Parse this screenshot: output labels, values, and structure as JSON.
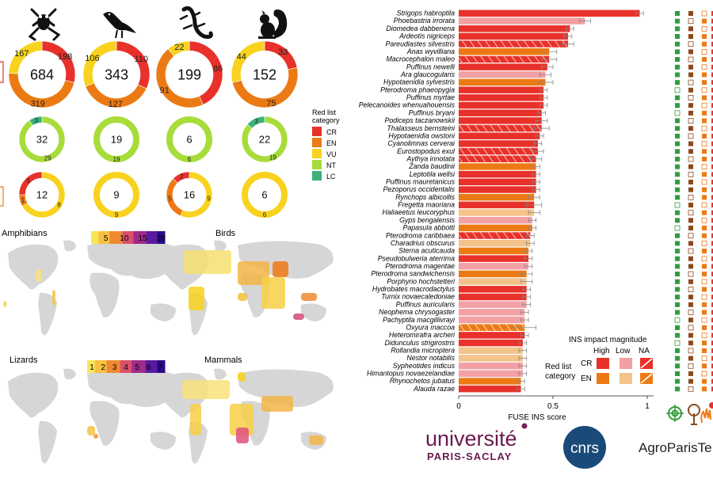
{
  "colors": {
    "CR": "#e8312a",
    "EN": "#ec7a14",
    "VU": "#f8d21e",
    "NT": "#a8dc3a",
    "LC": "#3cb07a",
    "CR_low": "#f2a0a4",
    "EN_low": "#f4c38c",
    "land": "#d6d6d6"
  },
  "groups": [
    {
      "name": "Amphibians",
      "icon": "frog-icon"
    },
    {
      "name": "Birds",
      "icon": "bird-icon"
    },
    {
      "name": "Lizards",
      "icon": "lizard-icon"
    },
    {
      "name": "Mammals",
      "icon": "squirrel-icon"
    }
  ],
  "donuts_total": [
    {
      "total": "684",
      "segments": [
        {
          "cat": "CR",
          "value": 198
        },
        {
          "cat": "EN",
          "value": 319
        },
        {
          "cat": "VU",
          "value": 167
        }
      ],
      "labels": {
        "CR": "198",
        "EN": "319",
        "VU": "167"
      }
    },
    {
      "total": "343",
      "segments": [
        {
          "cat": "CR",
          "value": 110
        },
        {
          "cat": "EN",
          "value": 127
        },
        {
          "cat": "VU",
          "value": 106
        }
      ],
      "labels": {
        "CR": "110",
        "EN": "127",
        "VU": "106"
      }
    },
    {
      "total": "199",
      "segments": [
        {
          "cat": "CR",
          "value": 86
        },
        {
          "cat": "EN",
          "value": 91
        },
        {
          "cat": "VU",
          "value": 22
        }
      ],
      "labels": {
        "CR": "86",
        "EN": "91",
        "VU": "22"
      }
    },
    {
      "total": "152",
      "segments": [
        {
          "cat": "CR",
          "value": 33
        },
        {
          "cat": "EN",
          "value": 75
        },
        {
          "cat": "VU",
          "value": 44
        }
      ],
      "labels": {
        "CR": "33",
        "EN": "75",
        "VU": "44"
      }
    }
  ],
  "donuts_mid": [
    {
      "total": "32",
      "segments": [
        {
          "cat": "NT",
          "value": 29
        },
        {
          "cat": "LC",
          "value": 3
        }
      ],
      "labels": {
        "NT": "29",
        "LC": "3"
      }
    },
    {
      "total": "19",
      "segments": [
        {
          "cat": "NT",
          "value": 19
        }
      ],
      "labels": {
        "NT": "19"
      }
    },
    {
      "total": "6",
      "segments": [
        {
          "cat": "NT",
          "value": 6
        }
      ],
      "labels": {
        "NT": "6"
      }
    },
    {
      "total": "22",
      "segments": [
        {
          "cat": "NT",
          "value": 19
        },
        {
          "cat": "LC",
          "value": 3
        }
      ],
      "labels": {
        "NT": "19",
        "LC": "3"
      }
    }
  ],
  "donuts_low": [
    {
      "total": "12",
      "segments": [
        {
          "cat": "VU",
          "value": 8
        },
        {
          "cat": "EN",
          "value": 1
        },
        {
          "cat": "CR",
          "value": 3
        }
      ],
      "labels": {
        "VU": "8",
        "EN": "1",
        "CR": "3"
      }
    },
    {
      "total": "9",
      "segments": [
        {
          "cat": "VU",
          "value": 9
        }
      ],
      "labels": {
        "VU": "9"
      }
    },
    {
      "total": "16",
      "segments": [
        {
          "cat": "VU",
          "value": 9
        },
        {
          "cat": "EN",
          "value": 5
        },
        {
          "cat": "CR",
          "value": 2
        }
      ],
      "labels": {
        "VU": "9",
        "EN": "5",
        "CR": "2"
      }
    },
    {
      "total": "6",
      "segments": [
        {
          "cat": "VU",
          "value": 6
        }
      ],
      "labels": {
        "VU": "6"
      }
    }
  ],
  "red_list_legend": {
    "title_line1": "Red list",
    "title_line2": "category",
    "items": [
      "CR",
      "EN",
      "VU",
      "NT",
      "LC"
    ]
  },
  "maps": {
    "scale_top": {
      "ticks": [
        "5",
        "10",
        "15",
        "20"
      ]
    },
    "scale_bottom": {
      "ticks": [
        "1",
        "2",
        "3",
        "4",
        "5",
        "6",
        "7"
      ]
    },
    "titles": [
      "Amphibians",
      "Birds",
      "Lizards",
      "Mammals"
    ]
  },
  "chart_data": {
    "type": "bar",
    "xlabel": "FUSE INS score",
    "xlim": [
      0,
      1.05
    ],
    "xticks": [
      "0",
      "0.5",
      "1"
    ],
    "bars": [
      {
        "species": "Strigops habroptila",
        "value": 0.96,
        "err": 0.02,
        "cat": "CR",
        "impact": "High"
      },
      {
        "species": "Phoebastria irrorata",
        "value": 0.67,
        "err": 0.03,
        "cat": "CR",
        "impact": "Low"
      },
      {
        "species": "Diomedea dabbenena",
        "value": 0.59,
        "err": 0.02,
        "cat": "CR",
        "impact": "High"
      },
      {
        "species": "Ardeotis nigriceps",
        "value": 0.58,
        "err": 0.02,
        "cat": "CR",
        "impact": "High"
      },
      {
        "species": "Pareudiastes silvestris",
        "value": 0.58,
        "err": 0.03,
        "cat": "CR",
        "impact": "NA"
      },
      {
        "species": "Anas wyvilliana",
        "value": 0.48,
        "err": 0.04,
        "cat": "EN",
        "impact": "High"
      },
      {
        "species": "Macrocephalon maleo",
        "value": 0.48,
        "err": 0.04,
        "cat": "CR",
        "impact": "NA"
      },
      {
        "species": "Puffinus newelli",
        "value": 0.47,
        "err": 0.03,
        "cat": "CR",
        "impact": "High"
      },
      {
        "species": "Ara glaucogularis",
        "value": 0.46,
        "err": 0.03,
        "cat": "CR",
        "impact": "Low"
      },
      {
        "species": "Hypotaenidia sylvestris",
        "value": 0.46,
        "err": 0.04,
        "cat": "EN",
        "impact": "High"
      },
      {
        "species": "Pterodroma phaeopygia",
        "value": 0.45,
        "err": 0.02,
        "cat": "CR",
        "impact": "High"
      },
      {
        "species": "Puffinus myrtae",
        "value": 0.45,
        "err": 0.02,
        "cat": "CR",
        "impact": "High"
      },
      {
        "species": "Pelecanoides whenuahouensis",
        "value": 0.45,
        "err": 0.02,
        "cat": "CR",
        "impact": "High"
      },
      {
        "species": "Puffinus bryani",
        "value": 0.44,
        "err": 0.02,
        "cat": "CR",
        "impact": "High"
      },
      {
        "species": "Podiceps taczanowskii",
        "value": 0.44,
        "err": 0.03,
        "cat": "CR",
        "impact": "High"
      },
      {
        "species": "Thalasseus bernsteini",
        "value": 0.44,
        "err": 0.04,
        "cat": "CR",
        "impact": "NA"
      },
      {
        "species": "Hypotaenidia owstoni",
        "value": 0.43,
        "err": 0.02,
        "cat": "CR",
        "impact": "High"
      },
      {
        "species": "Cyanolimnas cerverai",
        "value": 0.42,
        "err": 0.02,
        "cat": "CR",
        "impact": "High"
      },
      {
        "species": "Eurostopodus exul",
        "value": 0.42,
        "err": 0.03,
        "cat": "CR",
        "impact": "NA"
      },
      {
        "species": "Aythya innotata",
        "value": 0.41,
        "err": 0.03,
        "cat": "CR",
        "impact": "NA"
      },
      {
        "species": "Zanda baudinii",
        "value": 0.41,
        "err": 0.02,
        "cat": "EN",
        "impact": "High"
      },
      {
        "species": "Leptotila wellsi",
        "value": 0.41,
        "err": 0.02,
        "cat": "CR",
        "impact": "High"
      },
      {
        "species": "Puffinus mauretanicus",
        "value": 0.41,
        "err": 0.02,
        "cat": "CR",
        "impact": "High"
      },
      {
        "species": "Pezoporus occidentalis",
        "value": 0.41,
        "err": 0.02,
        "cat": "CR",
        "impact": "High"
      },
      {
        "species": "Rynchops albicollis",
        "value": 0.4,
        "err": 0.03,
        "cat": "EN",
        "impact": "High"
      },
      {
        "species": "Fregetta maoriana",
        "value": 0.4,
        "err": 0.04,
        "cat": "CR",
        "impact": "High"
      },
      {
        "species": "Haliaeetus leucoryphus",
        "value": 0.4,
        "err": 0.03,
        "cat": "EN",
        "impact": "Low"
      },
      {
        "species": "Gyps bengalensis",
        "value": 0.39,
        "err": 0.02,
        "cat": "CR",
        "impact": "Low"
      },
      {
        "species": "Papasula abbotti",
        "value": 0.39,
        "err": 0.02,
        "cat": "EN",
        "impact": "High"
      },
      {
        "species": "Pterodroma caribbaea",
        "value": 0.38,
        "err": 0.02,
        "cat": "CR",
        "impact": "NA"
      },
      {
        "species": "Charadrius obscurus",
        "value": 0.38,
        "err": 0.02,
        "cat": "EN",
        "impact": "Low"
      },
      {
        "species": "Sterna acuticauda",
        "value": 0.37,
        "err": 0.02,
        "cat": "EN",
        "impact": "High"
      },
      {
        "species": "Pseudobulweria aterrima",
        "value": 0.37,
        "err": 0.02,
        "cat": "CR",
        "impact": "High"
      },
      {
        "species": "Pterodroma magentae",
        "value": 0.37,
        "err": 0.02,
        "cat": "CR",
        "impact": "Low"
      },
      {
        "species": "Pterodroma sandwichensis",
        "value": 0.36,
        "err": 0.03,
        "cat": "EN",
        "impact": "High"
      },
      {
        "species": "Porphyrio hochstetteri",
        "value": 0.36,
        "err": 0.03,
        "cat": "EN",
        "impact": "Low"
      },
      {
        "species": "Hydrobates macrodactylus",
        "value": 0.36,
        "err": 0.02,
        "cat": "CR",
        "impact": "High"
      },
      {
        "species": "Turnix novaecaledoniae",
        "value": 0.36,
        "err": 0.02,
        "cat": "CR",
        "impact": "High"
      },
      {
        "species": "Puffinus auricularis",
        "value": 0.36,
        "err": 0.02,
        "cat": "CR",
        "impact": "Low"
      },
      {
        "species": "Neophema chrysogaster",
        "value": 0.35,
        "err": 0.02,
        "cat": "CR",
        "impact": "Low"
      },
      {
        "species": "Pachyptila macgillivrayi",
        "value": 0.35,
        "err": 0.02,
        "cat": "CR",
        "impact": "Low"
      },
      {
        "species": "Oxyura maccoa",
        "value": 0.35,
        "err": 0.06,
        "cat": "EN",
        "impact": "NA"
      },
      {
        "species": "Heteromirafra archeri",
        "value": 0.35,
        "err": 0.02,
        "cat": "CR",
        "impact": "High"
      },
      {
        "species": "Didunculus strigirostris",
        "value": 0.34,
        "err": 0.02,
        "cat": "CR",
        "impact": "High"
      },
      {
        "species": "Rollandia microptera",
        "value": 0.34,
        "err": 0.02,
        "cat": "EN",
        "impact": "Low"
      },
      {
        "species": "Nestor notabilis",
        "value": 0.34,
        "err": 0.02,
        "cat": "EN",
        "impact": "Low"
      },
      {
        "species": "Sypheotides indicus",
        "value": 0.34,
        "err": 0.02,
        "cat": "CR",
        "impact": "Low"
      },
      {
        "species": "Himantopus novaezelandiae",
        "value": 0.34,
        "err": 0.02,
        "cat": "CR",
        "impact": "Low"
      },
      {
        "species": "Rhynochetos jubatus",
        "value": 0.33,
        "err": 0.02,
        "cat": "EN",
        "impact": "High"
      },
      {
        "species": "Alauda razae",
        "value": 0.33,
        "err": 0.02,
        "cat": "CR",
        "impact": "High"
      }
    ]
  },
  "impact_legend": {
    "title": "INS impact magnitude",
    "cols": [
      "High",
      "Low",
      "NA"
    ],
    "rows": [
      "CR",
      "EN"
    ],
    "side_title_1": "Red list",
    "side_title_2": "category"
  },
  "logos": {
    "univ_1": "université",
    "univ_2": "PARIS-SACLAY",
    "cnrs": "cnrs",
    "agro": "AgroParisTe"
  }
}
